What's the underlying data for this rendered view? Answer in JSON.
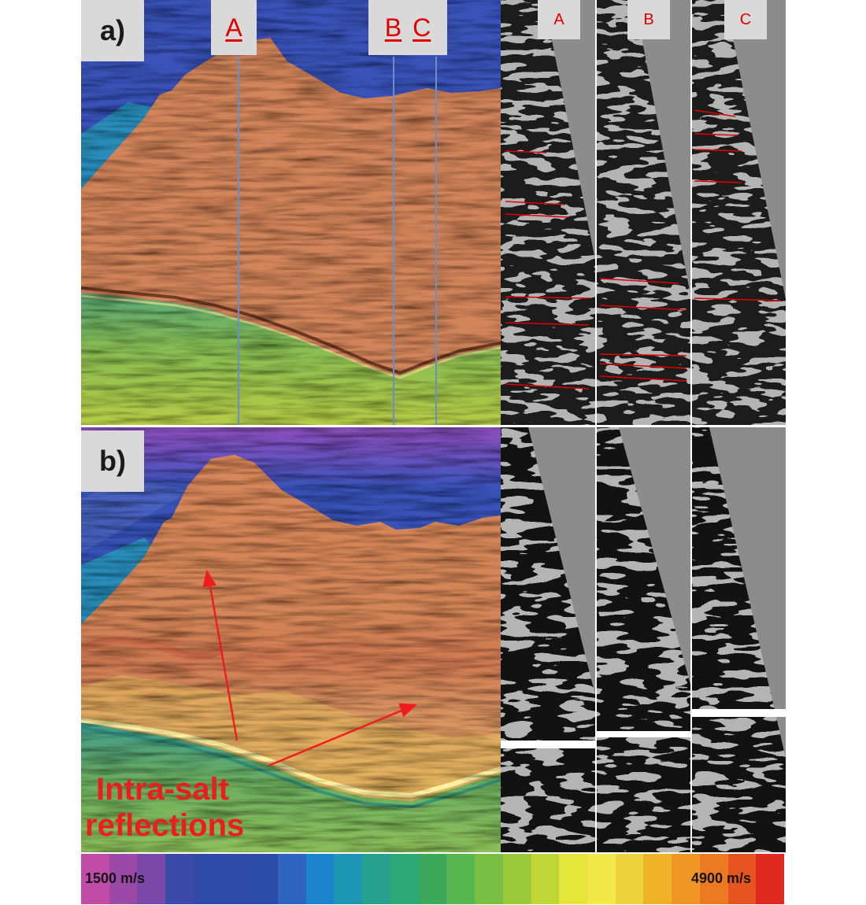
{
  "panel_a": {
    "label": "a)",
    "wells": [
      "A",
      "B",
      "C"
    ]
  },
  "panel_b": {
    "label": "b)"
  },
  "traces_header": [
    "A",
    "B",
    "C"
  ],
  "annotation": {
    "line1": "Intra-salt",
    "line2": "reflections"
  },
  "colorbar": {
    "min_label": "1500 m/s",
    "max_label": "4900 m/s",
    "colors": [
      "#c04ca8",
      "#9a4aa6",
      "#7a48a8",
      "#3a4aa6",
      "#2f4aa8",
      "#2f4aa8",
      "#2c4ca8",
      "#2c64c0",
      "#1c84cc",
      "#1c96b4",
      "#27a090",
      "#2fa878",
      "#3ea85a",
      "#58b650",
      "#78c044",
      "#9cca3a",
      "#bed636",
      "#e6e63a",
      "#f2e84a",
      "#eed23e",
      "#f0b228",
      "#ef9624",
      "#ec7a20",
      "#e65420",
      "#e02a20"
    ]
  },
  "colors": {
    "salt": "#d2845a",
    "water": "#3652b0",
    "sediment": "#82b85a",
    "marker": "#e00000"
  }
}
